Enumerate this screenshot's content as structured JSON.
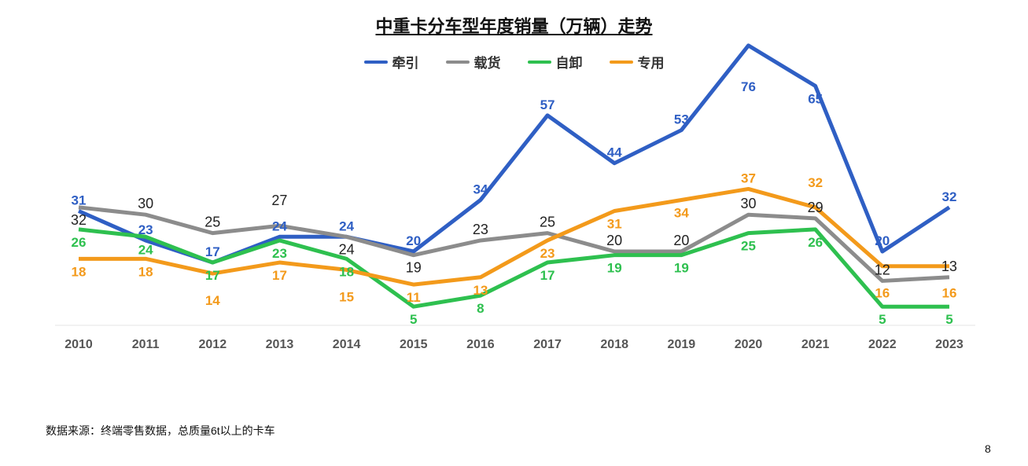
{
  "chart_data": {
    "type": "line",
    "title": "中重卡分车型年度销量（万辆）走势",
    "categories": [
      "2010",
      "2011",
      "2012",
      "2013",
      "2014",
      "2015",
      "2016",
      "2017",
      "2018",
      "2019",
      "2020",
      "2021",
      "2022",
      "2023"
    ],
    "series": [
      {
        "name": "牵引",
        "color": "#2f5fc4",
        "values": [
          31,
          23,
          17,
          24,
          24,
          20,
          34,
          57,
          44,
          53,
          76,
          65,
          20,
          32
        ]
      },
      {
        "name": "载货",
        "color": "#8c8c8c",
        "values": [
          32,
          30,
          25,
          27,
          24,
          19,
          23,
          25,
          20,
          20,
          30,
          29,
          12,
          13
        ]
      },
      {
        "name": "自卸",
        "color": "#2ec04f",
        "values": [
          26,
          24,
          17,
          23,
          18,
          5,
          8,
          17,
          19,
          19,
          25,
          26,
          5,
          5
        ]
      },
      {
        "name": "专用",
        "color": "#f39a1b",
        "values": [
          18,
          18,
          14,
          17,
          15,
          11,
          13,
          23,
          31,
          34,
          37,
          32,
          16,
          16
        ]
      }
    ],
    "ylim": [
      0,
      80
    ],
    "grid": false,
    "legend": "top"
  },
  "footer": {
    "source": "数据来源：终端零售数据，总质量6t以上的卡车",
    "page": "8"
  }
}
